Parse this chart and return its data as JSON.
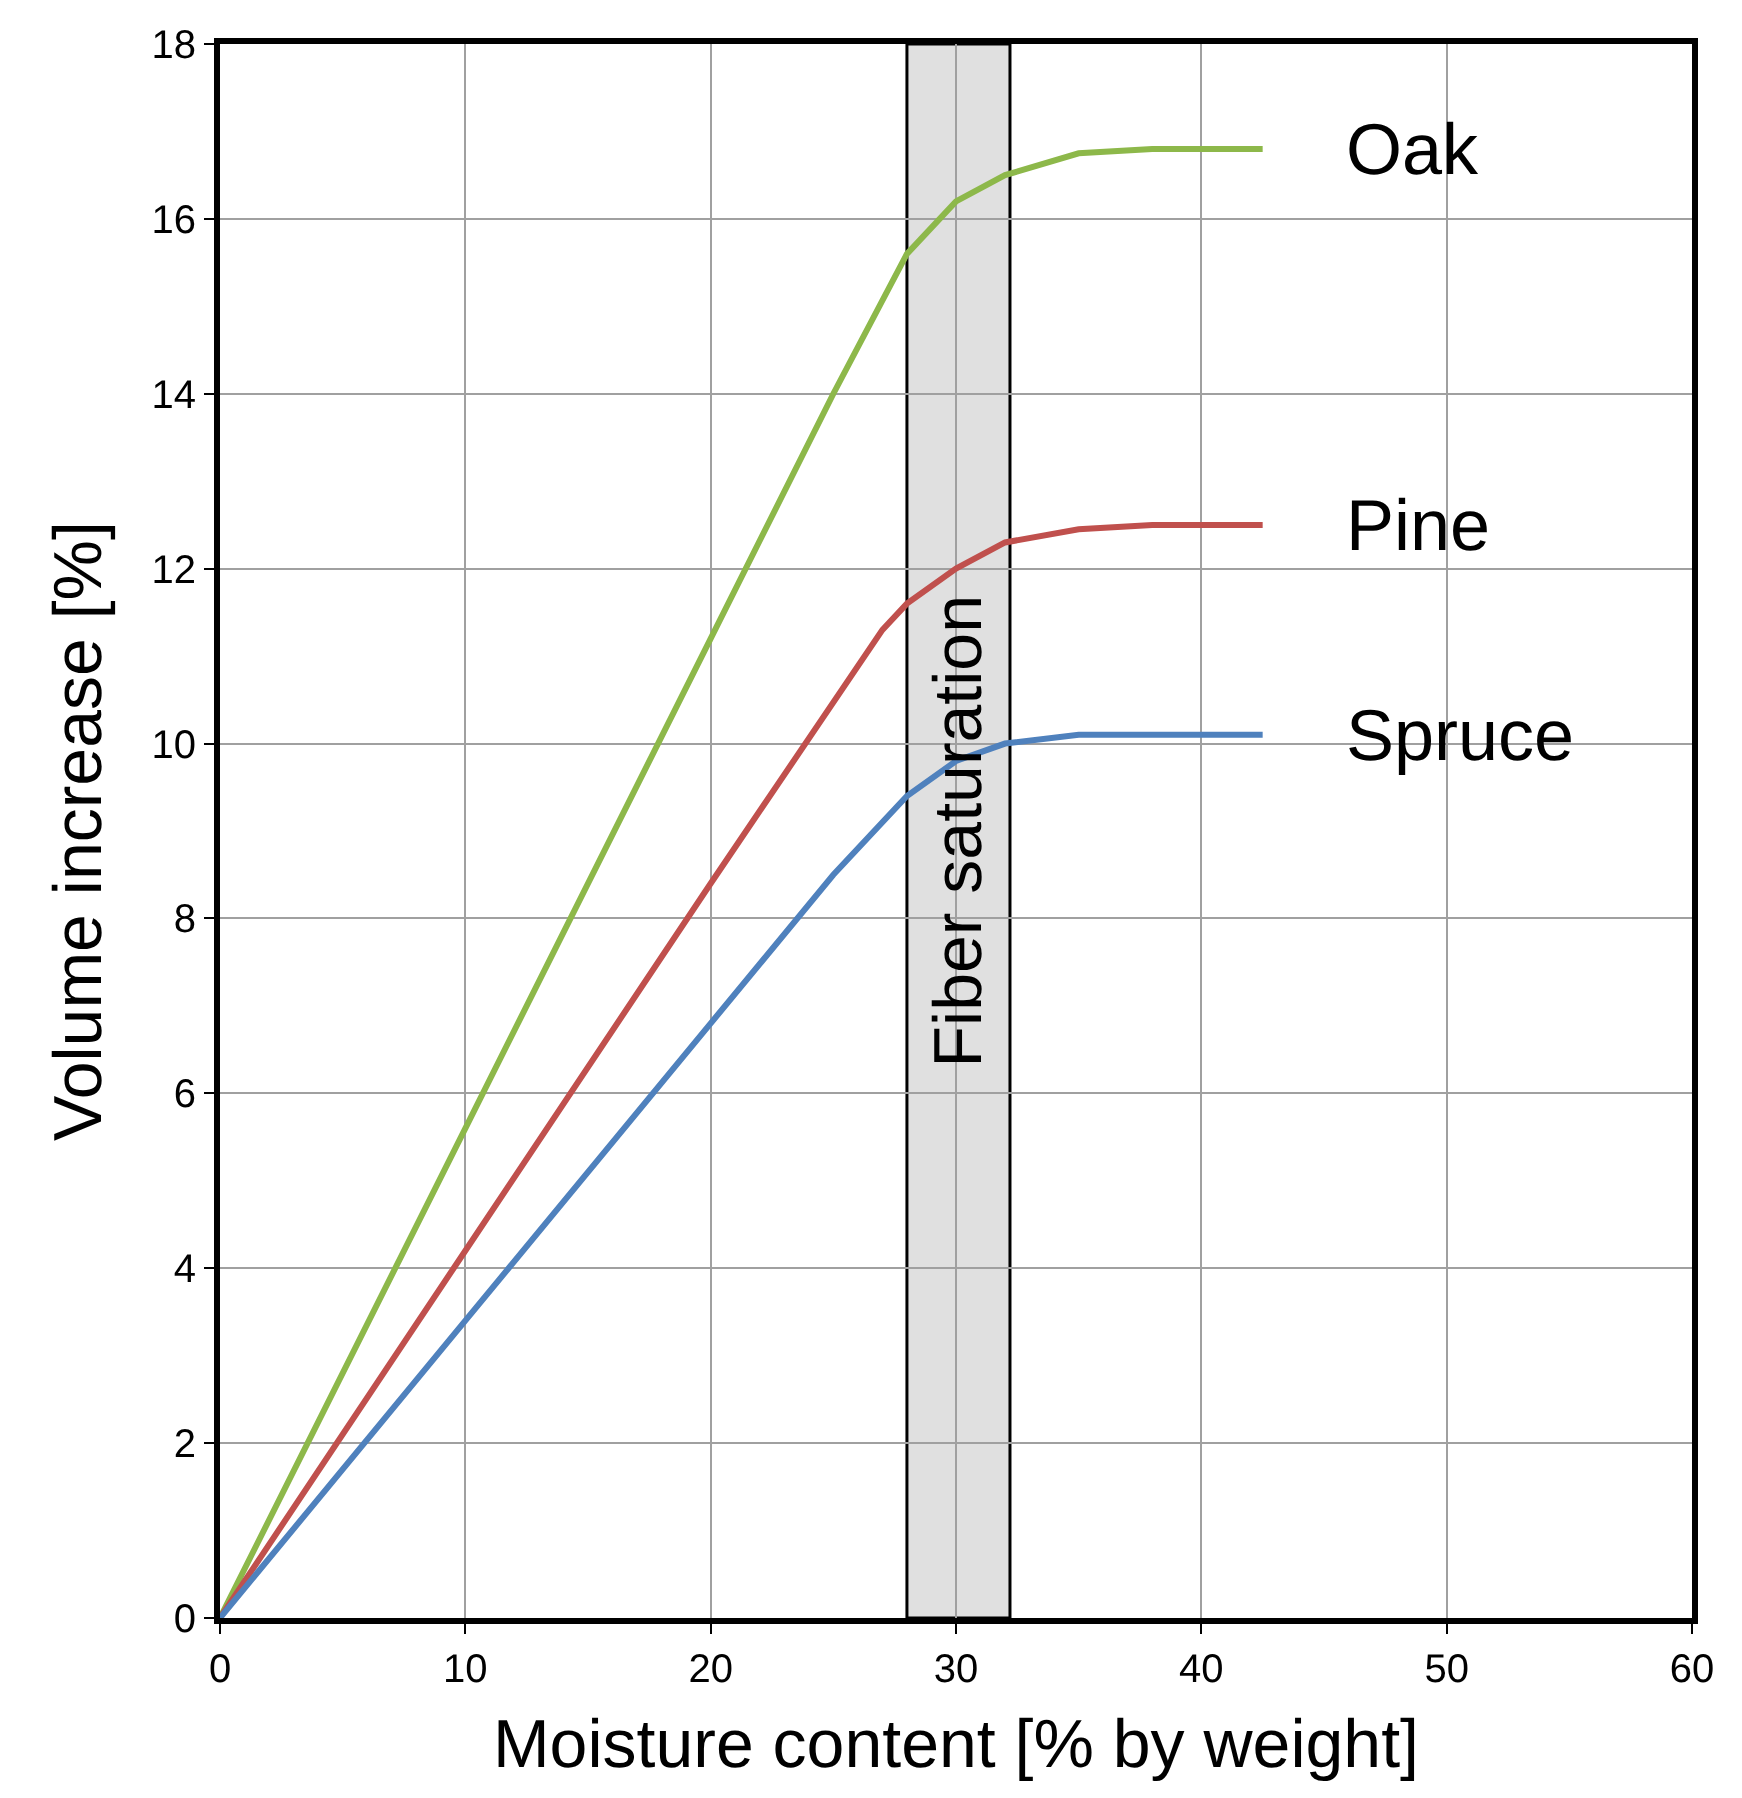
{
  "chart_data": {
    "type": "line",
    "xlabel": "Moisture content [% by weight]",
    "ylabel": "Volume increase [%]",
    "xlim": [
      0,
      60
    ],
    "xticks": [
      0,
      10,
      20,
      30,
      40,
      50,
      60
    ],
    "ylim": [
      0,
      18
    ],
    "yticks": [
      0,
      2,
      4,
      6,
      8,
      10,
      12,
      14,
      16,
      18
    ],
    "grid": true,
    "legend": false,
    "bands": [
      {
        "axis": "x",
        "from": 28,
        "to": 32.2,
        "label": "Fiber saturation",
        "color": "#e0e0e0"
      }
    ],
    "series": [
      {
        "name": "Oak",
        "color": "#8db84a",
        "x": [
          0,
          10,
          20,
          25,
          28,
          30,
          32,
          35,
          38,
          42.5
        ],
        "values": [
          0,
          5.6,
          11.2,
          14,
          15.6,
          16.2,
          16.5,
          16.75,
          16.8,
          16.8
        ]
      },
      {
        "name": "Pine",
        "color": "#c0504d",
        "x": [
          0,
          10,
          20,
          27,
          28,
          30,
          32,
          35,
          38,
          42.5
        ],
        "values": [
          0,
          4.2,
          8.4,
          11.3,
          11.6,
          12.0,
          12.3,
          12.45,
          12.5,
          12.5
        ]
      },
      {
        "name": "Spruce",
        "color": "#4f81bd",
        "x": [
          0,
          10,
          20,
          25,
          28,
          30,
          32,
          35,
          42.5
        ],
        "values": [
          0,
          3.4,
          6.8,
          8.5,
          9.4,
          9.8,
          10.0,
          10.1,
          10.1
        ]
      }
    ]
  }
}
